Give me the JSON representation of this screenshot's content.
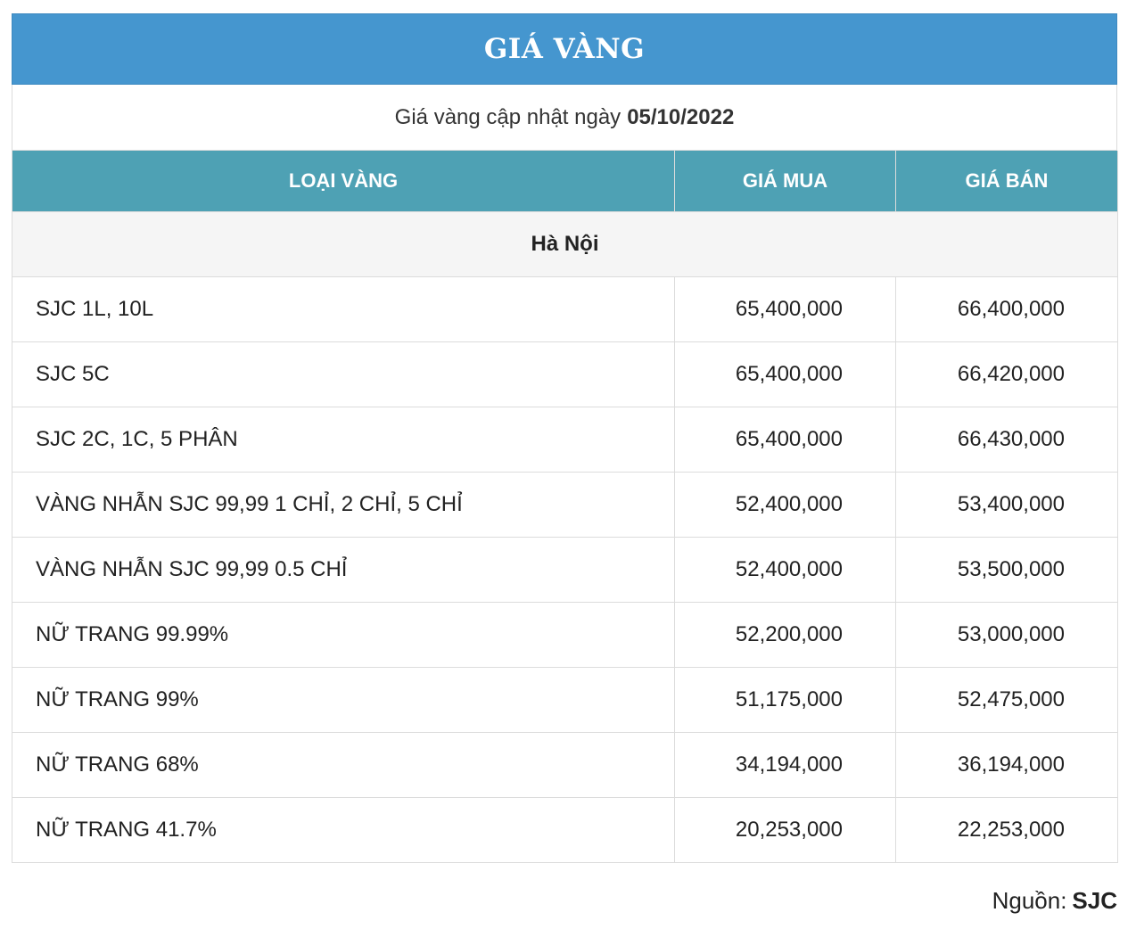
{
  "title": "GIÁ VÀNG",
  "update": {
    "label": "Giá vàng cập nhật ngày",
    "date": "05/10/2022"
  },
  "columns": {
    "type": "LOẠI VÀNG",
    "buy": "GIÁ MUA",
    "sell": "GIÁ BÁN"
  },
  "region": "Hà Nội",
  "rows": [
    {
      "name": "SJC 1L, 10L",
      "buy": "65,400,000",
      "sell": "66,400,000"
    },
    {
      "name": "SJC 5C",
      "buy": "65,400,000",
      "sell": "66,420,000"
    },
    {
      "name": "SJC 2C, 1C, 5 PHÂN",
      "buy": "65,400,000",
      "sell": "66,430,000"
    },
    {
      "name": "VÀNG NHẪN SJC 99,99 1 CHỈ, 2 CHỈ, 5 CHỈ",
      "buy": "52,400,000",
      "sell": "53,400,000"
    },
    {
      "name": "VÀNG NHẪN SJC 99,99 0.5 CHỈ",
      "buy": "52,400,000",
      "sell": "53,500,000"
    },
    {
      "name": "NỮ TRANG 99.99%",
      "buy": "52,200,000",
      "sell": "53,000,000"
    },
    {
      "name": "NỮ TRANG 99%",
      "buy": "51,175,000",
      "sell": "52,475,000"
    },
    {
      "name": "NỮ TRANG 68%",
      "buy": "34,194,000",
      "sell": "36,194,000"
    },
    {
      "name": "NỮ TRANG 41.7%",
      "buy": "20,253,000",
      "sell": "22,253,000"
    }
  ],
  "source": {
    "label": "Nguồn:",
    "name": "SJC"
  },
  "colors": {
    "title_bg": "#4596cf",
    "header_bg": "#4ea1b4",
    "region_bg": "#f5f5f5",
    "border": "#dcdcdc"
  }
}
